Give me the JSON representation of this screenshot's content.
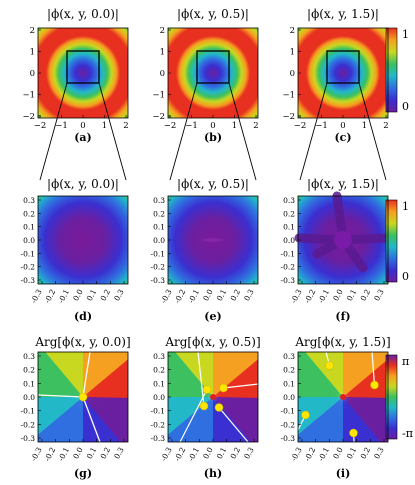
{
  "rows": [
    {
      "titles": [
        "|ϕ(x, y, 0.0)|",
        "|ϕ(x, y, 0.5)|",
        "|ϕ(x, y, 1.5)|"
      ],
      "letters": [
        "(a)",
        "(b)",
        "(c)"
      ],
      "xticks": [
        "−2",
        "−1",
        "0",
        "1",
        "2"
      ],
      "yticks": [
        "2",
        "1",
        "0",
        "−1",
        "−2"
      ],
      "colorbar_labels": [
        "1",
        "0"
      ]
    },
    {
      "titles": [
        "|ϕ(x, y, 0.0)|",
        "|ϕ(x, y, 0.5)|",
        "|ϕ(x, y, 1.5)|"
      ],
      "letters": [
        "(d)",
        "(e)",
        "(f)"
      ],
      "xticks": [
        "-0.3",
        "-0.2",
        "-0.1",
        "0.0",
        "0.1",
        "0.2",
        "0.3"
      ],
      "yticks": [
        "0.3",
        "0.2",
        "0.1",
        "0.0",
        "-0.1",
        "-0.2",
        "-0.3"
      ],
      "colorbar_labels": [
        "1",
        "0"
      ]
    },
    {
      "titles": [
        "Arg[ϕ(x, y, 0.0)]",
        "Arg[ϕ(x, y, 0.5)]",
        "Arg[ϕ(x, y, 1.5)]"
      ],
      "letters": [
        "(g)",
        "(h)",
        "(i)"
      ],
      "xticks": [
        "-0.3",
        "-0.2",
        "-0.1",
        "0.0",
        "0.1",
        "0.2",
        "0.3"
      ],
      "yticks": [
        "0.3",
        "0.2",
        "0.1",
        "0.0",
        "-0.1",
        "-0.2",
        "-0.3"
      ],
      "colorbar_labels": [
        "π",
        "-π"
      ]
    }
  ],
  "colors": {
    "rainbow": [
      "#6a1fa0",
      "#3a2fd0",
      "#2f6fe0",
      "#22b8c8",
      "#3cc060",
      "#c8d820",
      "#f5a020",
      "#e83020"
    ],
    "vortex_core": "#ffe600",
    "center_dot": "#e02020",
    "branch_cut": "#ffffff"
  },
  "chart_data": [
    {
      "type": "heatmap",
      "panel": "a",
      "quantity": "|ϕ(x, y, 0.0)|",
      "xlim": [
        -2,
        2
      ],
      "ylim": [
        -2,
        2
      ],
      "zoom_box": [
        -0.3,
        0.3
      ],
      "value_range": [
        0,
        1
      ]
    },
    {
      "type": "heatmap",
      "panel": "b",
      "quantity": "|ϕ(x, y, 0.5)|",
      "xlim": [
        -2,
        2
      ],
      "ylim": [
        -2,
        2
      ],
      "zoom_box": [
        -0.3,
        0.3
      ],
      "value_range": [
        0,
        1
      ]
    },
    {
      "type": "heatmap",
      "panel": "c",
      "quantity": "|ϕ(x, y, 1.5)|",
      "xlim": [
        -2,
        2
      ],
      "ylim": [
        -2,
        2
      ],
      "zoom_box": [
        -0.3,
        0.3
      ],
      "value_range": [
        0,
        1
      ]
    },
    {
      "type": "heatmap",
      "panel": "d",
      "quantity": "|ϕ(x, y, 0.0)|",
      "xlim": [
        -0.3,
        0.3
      ],
      "ylim": [
        -0.3,
        0.3
      ],
      "value_range": [
        0,
        1
      ]
    },
    {
      "type": "heatmap",
      "panel": "e",
      "quantity": "|ϕ(x, y, 0.5)|",
      "xlim": [
        -0.3,
        0.3
      ],
      "ylim": [
        -0.3,
        0.3
      ],
      "value_range": [
        0,
        1
      ]
    },
    {
      "type": "heatmap",
      "panel": "f",
      "quantity": "|ϕ(x, y, 1.5)|",
      "xlim": [
        -0.3,
        0.3
      ],
      "ylim": [
        -0.3,
        0.3
      ],
      "value_range": [
        0,
        1
      ]
    },
    {
      "type": "heatmap",
      "panel": "g",
      "quantity": "Arg[ϕ(x, y, 0.0)]",
      "xlim": [
        -0.3,
        0.3
      ],
      "ylim": [
        -0.3,
        0.3
      ],
      "value_range": [
        "-π",
        "π"
      ],
      "vortex_cores": [
        [
          0.0,
          0.0
        ]
      ]
    },
    {
      "type": "heatmap",
      "panel": "h",
      "quantity": "Arg[ϕ(x, y, 0.5)]",
      "xlim": [
        -0.3,
        0.3
      ],
      "ylim": [
        -0.3,
        0.3
      ],
      "value_range": [
        "-π",
        "π"
      ],
      "vortex_cores": [
        [
          -0.04,
          0.05
        ],
        [
          0.07,
          0.06
        ],
        [
          -0.06,
          -0.06
        ],
        [
          0.04,
          -0.07
        ]
      ],
      "center": [
        0.0,
        0.0
      ]
    },
    {
      "type": "heatmap",
      "panel": "i",
      "quantity": "Arg[ϕ(x, y, 1.5)]",
      "xlim": [
        -0.3,
        0.3
      ],
      "ylim": [
        -0.3,
        0.3
      ],
      "value_range": [
        "-π",
        "π"
      ],
      "vortex_cores": [
        [
          -0.09,
          0.21
        ],
        [
          0.21,
          0.08
        ],
        [
          -0.25,
          -0.12
        ],
        [
          0.07,
          -0.24
        ]
      ],
      "center": [
        0.0,
        0.0
      ]
    }
  ]
}
